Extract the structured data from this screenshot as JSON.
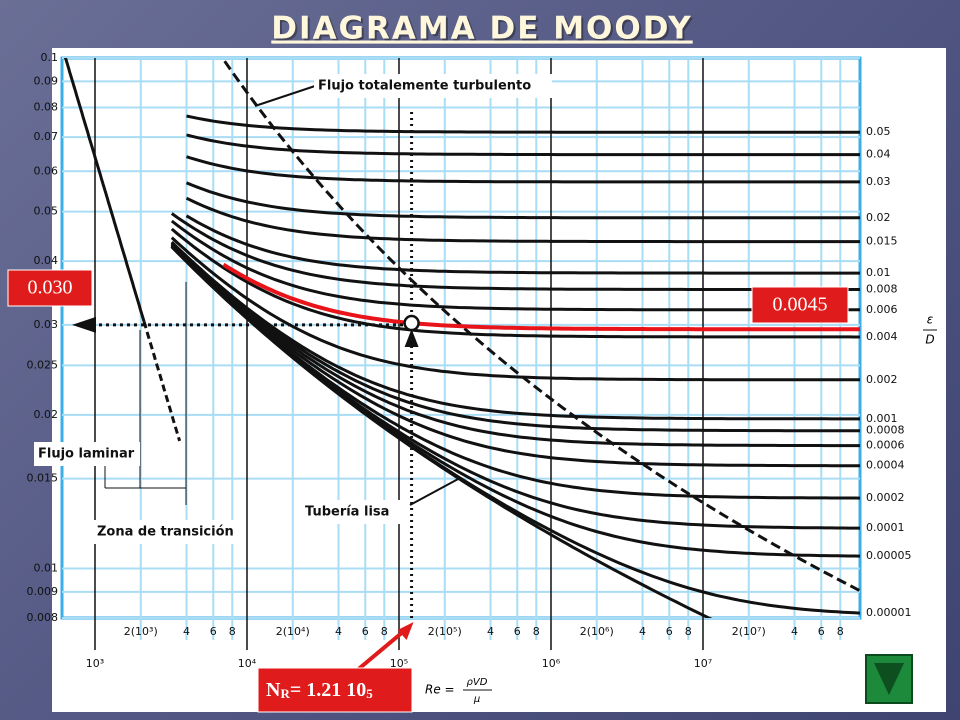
{
  "title": "DIAGRAMA DE MOODY",
  "friction_axis": {
    "ticks": [
      0.1,
      0.09,
      0.08,
      0.07,
      0.06,
      0.05,
      0.04,
      0.03,
      0.025,
      0.02,
      0.015,
      0.01,
      0.009,
      0.008
    ]
  },
  "roughness_axis": {
    "label_top": "ε",
    "label_bottom": "D",
    "ticks": [
      0.05,
      0.04,
      0.03,
      0.02,
      0.015,
      0.01,
      0.008,
      0.006,
      0.004,
      0.002,
      0.001,
      0.0008,
      0.0006,
      0.0004,
      0.0002,
      0.0001,
      5e-05,
      1e-05
    ]
  },
  "reynolds_axis": {
    "minor_ticks": [
      {
        "value": 2000,
        "label": "2(10³)"
      },
      {
        "value": 4000,
        "label": "4"
      },
      {
        "value": 6000,
        "label": "6"
      },
      {
        "value": 8000,
        "label": "8"
      },
      {
        "value": 20000,
        "label": "2(10⁴)"
      },
      {
        "value": 40000,
        "label": "4"
      },
      {
        "value": 60000,
        "label": "6"
      },
      {
        "value": 80000,
        "label": "8"
      },
      {
        "value": 200000,
        "label": "2(10⁵)"
      },
      {
        "value": 400000,
        "label": "4"
      },
      {
        "value": 600000,
        "label": "6"
      },
      {
        "value": 800000,
        "label": "8"
      },
      {
        "value": 2000000,
        "label": "2(10⁶)"
      },
      {
        "value": 4000000,
        "label": "4"
      },
      {
        "value": 6000000,
        "label": "6"
      },
      {
        "value": 8000000,
        "label": "8"
      },
      {
        "value": 20000000,
        "label": "2(10⁷)"
      },
      {
        "value": 40000000,
        "label": "4"
      },
      {
        "value": 60000000,
        "label": "6"
      },
      {
        "value": 80000000,
        "label": "8"
      }
    ],
    "major_ticks": [
      {
        "value": 1000,
        "label": "10³"
      },
      {
        "value": 10000,
        "label": "10⁴"
      },
      {
        "value": 100000,
        "label": "10⁵"
      },
      {
        "value": 1000000,
        "label": "10⁶"
      },
      {
        "value": 10000000,
        "label": "10⁷"
      }
    ],
    "label": "Re =",
    "formula_top": "ρVD",
    "formula_bottom": "μ"
  },
  "annotations": {
    "turbulent": "Flujo totalemente turbulento",
    "laminar": "Flujo laminar",
    "transition": "Zona de transición",
    "smooth": "Tubería lisa"
  },
  "highlight": {
    "friction_label": "0.030",
    "friction": 0.03,
    "roughness_label": "0.0045",
    "roughness": 0.0045,
    "reynolds": {
      "value": 121000,
      "parts": [
        "N",
        "R",
        "= 1.21 10",
        "5"
      ]
    }
  }
}
